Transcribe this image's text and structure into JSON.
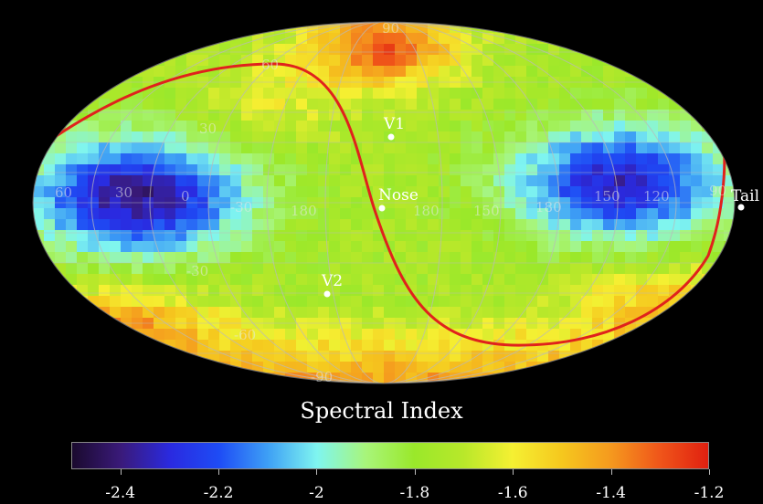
{
  "map": {
    "projection": "mollweide-like sky map",
    "meridian_labels": [
      "60",
      "30",
      "0",
      "-30",
      "180",
      "150",
      "120",
      "90",
      "60",
      "30",
      "0",
      "-30",
      "-60",
      "150",
      "120",
      "90"
    ],
    "parallel_labels": [
      "90",
      "60",
      "30",
      "-30",
      "-60",
      "-90"
    ],
    "markers": [
      {
        "name": "V1",
        "label": "V1"
      },
      {
        "name": "Nose",
        "label": "Nose"
      },
      {
        "name": "V2",
        "label": "V2"
      },
      {
        "name": "Tail",
        "label": "Tail"
      }
    ],
    "ribbon_color": "#e0221c"
  },
  "colorbar": {
    "title": "Spectral Index",
    "range": [
      -2.5,
      -1.2
    ],
    "ticks": [
      "-2.4",
      "-2.2",
      "-2",
      "-1.8",
      "-1.6",
      "-1.4",
      "-1.2"
    ],
    "stops": [
      {
        "v": -2.5,
        "color": "#1a0a2e"
      },
      {
        "v": -2.4,
        "color": "#3a1a7a"
      },
      {
        "v": -2.3,
        "color": "#2a2ae0"
      },
      {
        "v": -2.2,
        "color": "#1e4cf5"
      },
      {
        "v": -2.1,
        "color": "#3ea0f5"
      },
      {
        "v": -2.0,
        "color": "#7ff5f0"
      },
      {
        "v": -1.9,
        "color": "#a8f57a"
      },
      {
        "v": -1.8,
        "color": "#9ae82a"
      },
      {
        "v": -1.7,
        "color": "#b8e82a"
      },
      {
        "v": -1.6,
        "color": "#f5f032"
      },
      {
        "v": -1.5,
        "color": "#f5c81e"
      },
      {
        "v": -1.4,
        "color": "#f59a1e"
      },
      {
        "v": -1.3,
        "color": "#f0561a"
      },
      {
        "v": -1.2,
        "color": "#e02010"
      }
    ]
  }
}
